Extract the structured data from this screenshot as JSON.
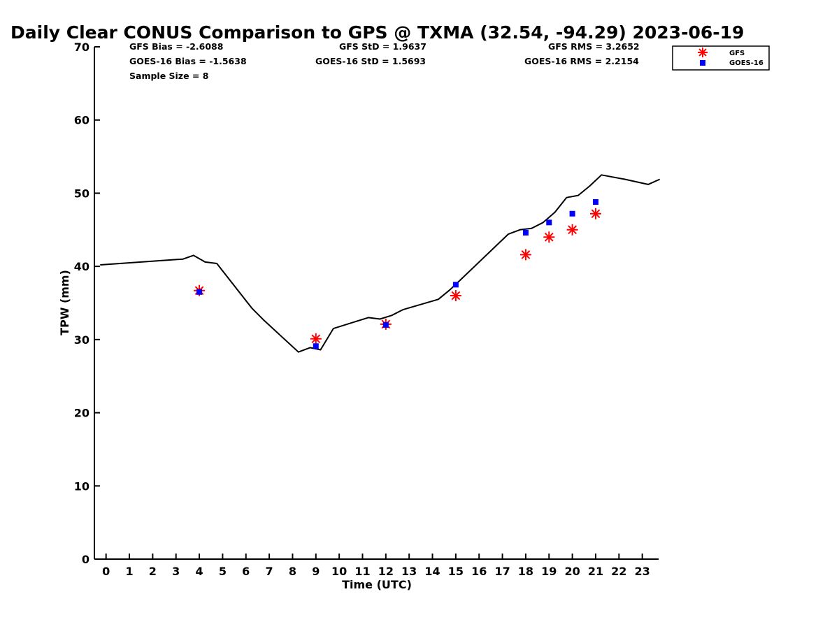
{
  "chart_data": {
    "type": "line",
    "title": "Daily Clear CONUS Comparison to GPS @ TXMA (32.54, -94.29) 2023-06-19",
    "xlabel": "Time (UTC)",
    "ylabel": "TPW (mm)",
    "xlim": [
      -0.5,
      23.7
    ],
    "ylim": [
      0,
      70
    ],
    "x_ticks": [
      0,
      1,
      2,
      3,
      4,
      5,
      6,
      7,
      8,
      9,
      10,
      11,
      12,
      13,
      14,
      15,
      16,
      17,
      18,
      19,
      20,
      21,
      22,
      23
    ],
    "y_ticks": [
      0,
      10,
      20,
      30,
      40,
      50,
      60,
      70
    ],
    "grid": false,
    "legend_position": "top-right",
    "stats": [
      "GFS Bias = -2.6088",
      "GFS StD = 1.9637",
      "GFS RMS = 3.2652",
      "GOES-16 Bias = -1.5638",
      "GOES-16 StD = 1.5693",
      "GOES-16 RMS = 2.2154",
      "Sample Size = 8"
    ],
    "gps_line": {
      "color": "#000000",
      "x": [
        -0.25,
        3.3,
        3.75,
        4.25,
        4.75,
        6.25,
        6.75,
        8.25,
        8.75,
        9.2,
        9.75,
        11.25,
        11.75,
        12.25,
        12.75,
        14.25,
        14.75,
        15.25,
        17.25,
        17.75,
        18.25,
        18.75,
        19.25,
        19.75,
        20.25,
        20.75,
        21.25,
        22.25,
        23.25,
        23.75
      ],
      "y": [
        40.2,
        41.0,
        41.5,
        40.6,
        40.4,
        34.3,
        32.7,
        28.3,
        28.9,
        28.6,
        31.5,
        33.0,
        32.8,
        33.3,
        34.1,
        35.5,
        36.8,
        38.3,
        44.4,
        45.0,
        45.2,
        46.0,
        47.4,
        49.4,
        49.7,
        51.0,
        52.5,
        51.9,
        51.2,
        51.9
      ]
    },
    "series": [
      {
        "name": "GFS",
        "marker": "asterisk",
        "color": "#ff0000",
        "x": [
          4,
          9,
          12,
          15,
          18,
          19,
          20,
          21
        ],
        "y": [
          36.7,
          30.1,
          32.1,
          36.0,
          41.6,
          44.0,
          45.0,
          47.2
        ]
      },
      {
        "name": "GOES-16",
        "marker": "square",
        "color": "#0000ff",
        "x": [
          4,
          9,
          12,
          15,
          18,
          19,
          20,
          21
        ],
        "y": [
          36.5,
          29.1,
          32.0,
          37.5,
          44.6,
          46.0,
          47.2,
          48.8
        ]
      }
    ]
  }
}
